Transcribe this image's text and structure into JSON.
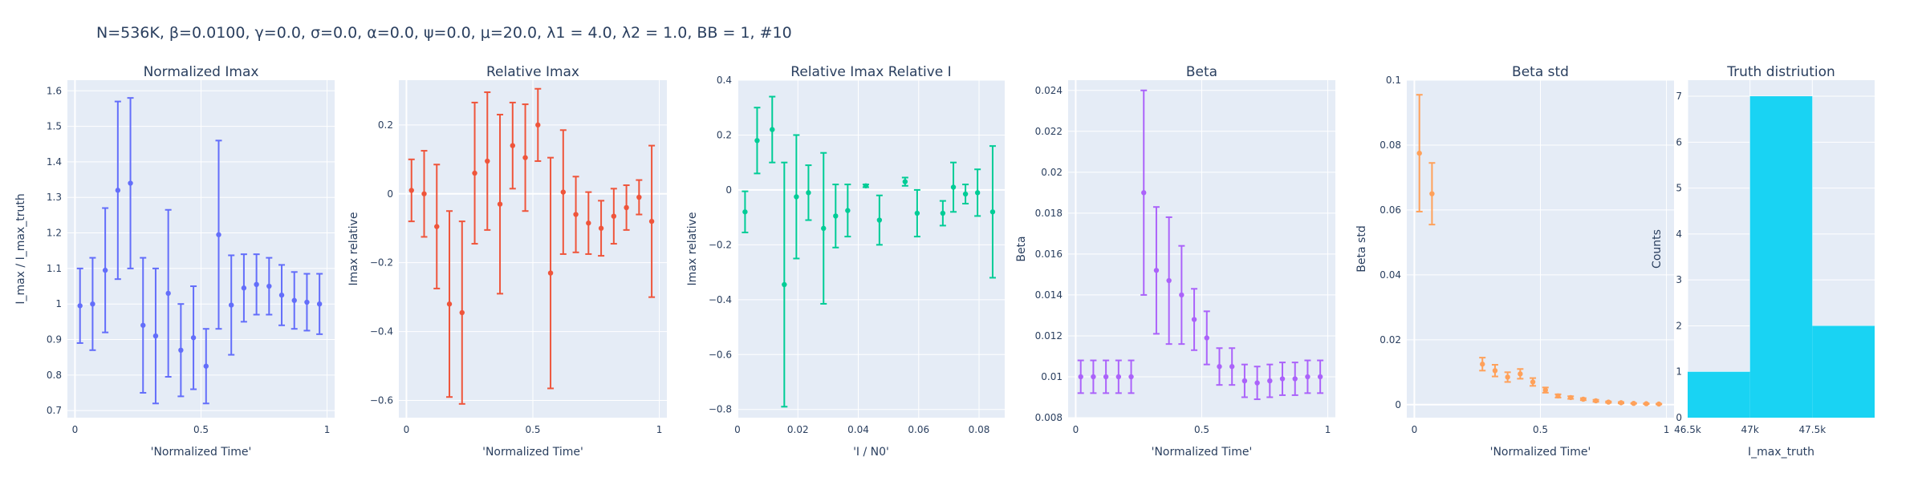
{
  "figure_title": "N=536K, β=0.0100, γ=0.0, σ=0.0,  α=0.0, ψ=0.0, μ=20.0, λ1 = 4.0, λ2 = 1.0, BB = 1, #10",
  "chart_data": [
    {
      "type": "scatter",
      "title": "Normalized Imax",
      "xlabel": "'Normalized Time'",
      "ylabel": "I_max / I_max_truth",
      "color": "#636efa",
      "xlim": [
        -0.03,
        1.03
      ],
      "ylim": [
        0.68,
        1.63
      ],
      "xticks": [
        0,
        0.5,
        1
      ],
      "xtick_labels": [
        "0",
        "0.5",
        "1"
      ],
      "yticks": [
        0.7,
        0.8,
        0.9,
        1,
        1.1,
        1.2,
        1.3,
        1.4,
        1.5,
        1.6
      ],
      "ytick_labels": [
        "0.7",
        "0.8",
        "0.9",
        "1",
        "1.1",
        "1.2",
        "1.3",
        "1.4",
        "1.5",
        "1.6"
      ],
      "x": [
        0.02,
        0.07,
        0.12,
        0.17,
        0.22,
        0.27,
        0.32,
        0.37,
        0.42,
        0.47,
        0.52,
        0.57,
        0.62,
        0.67,
        0.72,
        0.77,
        0.82,
        0.87,
        0.92,
        0.97
      ],
      "y": [
        0.995,
        1.0,
        1.095,
        1.32,
        1.34,
        0.94,
        0.91,
        1.03,
        0.87,
        0.905,
        0.825,
        1.195,
        0.997,
        1.045,
        1.055,
        1.05,
        1.025,
        1.01,
        1.005,
        1.0
      ],
      "err": [
        0.105,
        0.13,
        0.175,
        0.25,
        0.24,
        0.19,
        0.19,
        0.235,
        0.13,
        0.145,
        0.105,
        0.265,
        0.14,
        0.095,
        0.085,
        0.08,
        0.085,
        0.08,
        0.08,
        0.085
      ]
    },
    {
      "type": "scatter",
      "title": "Relative Imax",
      "xlabel": "'Normalized Time'",
      "ylabel": "Imax relative",
      "color": "#ef553b",
      "xlim": [
        -0.03,
        1.03
      ],
      "ylim": [
        -0.65,
        0.33
      ],
      "xticks": [
        0,
        0.5,
        1
      ],
      "xtick_labels": [
        "0",
        "0.5",
        "1"
      ],
      "yticks": [
        -0.6,
        -0.4,
        -0.2,
        0,
        0.2
      ],
      "ytick_labels": [
        "−0.6",
        "−0.4",
        "−0.2",
        "0",
        "0.2"
      ],
      "x": [
        0.02,
        0.07,
        0.12,
        0.17,
        0.22,
        0.27,
        0.32,
        0.37,
        0.42,
        0.47,
        0.52,
        0.57,
        0.62,
        0.67,
        0.72,
        0.77,
        0.82,
        0.87,
        0.92,
        0.97
      ],
      "y": [
        0.01,
        0.0,
        -0.095,
        -0.32,
        -0.345,
        0.06,
        0.095,
        -0.03,
        0.14,
        0.105,
        0.2,
        -0.23,
        0.005,
        -0.06,
        -0.085,
        -0.1,
        -0.065,
        -0.04,
        -0.01,
        -0.08
      ],
      "err": [
        0.09,
        0.125,
        0.18,
        0.27,
        0.265,
        0.205,
        0.2,
        0.26,
        0.125,
        0.155,
        0.105,
        0.335,
        0.18,
        0.11,
        0.09,
        0.08,
        0.08,
        0.065,
        0.05,
        0.22
      ]
    },
    {
      "type": "scatter",
      "title": "Relative Imax Relative I",
      "xlabel": "'I / N0'",
      "ylabel": "Imax relative",
      "color": "#00cc96",
      "xlim": [
        0.0,
        0.0885
      ],
      "ylim": [
        -0.83,
        0.4
      ],
      "xticks": [
        0,
        0.02,
        0.04,
        0.06,
        0.08
      ],
      "xtick_labels": [
        "0",
        "0.02",
        "0.04",
        "0.06",
        "0.08"
      ],
      "yticks": [
        -0.8,
        -0.6,
        -0.4,
        -0.2,
        0,
        0.2,
        0.4
      ],
      "ytick_labels": [
        "−0.8",
        "−0.6",
        "−0.4",
        "−0.2",
        "0",
        "0.2",
        "0.4"
      ],
      "x": [
        0.0025,
        0.0065,
        0.0115,
        0.0155,
        0.0195,
        0.0235,
        0.0285,
        0.0325,
        0.0365,
        0.0425,
        0.047,
        0.0555,
        0.0595,
        0.068,
        0.0715,
        0.0755,
        0.0795,
        0.0845
      ],
      "y": [
        -0.08,
        0.18,
        0.22,
        -0.345,
        -0.025,
        -0.01,
        -0.14,
        -0.095,
        -0.075,
        0.015,
        -0.11,
        0.03,
        -0.085,
        -0.085,
        0.01,
        -0.015,
        -0.01,
        -0.08
      ],
      "err": [
        0.075,
        0.12,
        0.12,
        0.445,
        0.225,
        0.1,
        0.275,
        0.115,
        0.095,
        0.005,
        0.09,
        0.015,
        0.085,
        0.045,
        0.09,
        0.035,
        0.085,
        0.24
      ]
    },
    {
      "type": "scatter",
      "title": "Beta",
      "xlabel": "'Normalized Time'",
      "ylabel": "Beta",
      "color": "#ab63fa",
      "xlim": [
        -0.03,
        1.03
      ],
      "ylim": [
        0.008,
        0.0245
      ],
      "xticks": [
        0,
        0.5,
        1
      ],
      "xtick_labels": [
        "0",
        "0.5",
        "1"
      ],
      "yticks": [
        0.008,
        0.01,
        0.012,
        0.014,
        0.016,
        0.018,
        0.02,
        0.022,
        0.024
      ],
      "ytick_labels": [
        "0.008",
        "0.01",
        "0.012",
        "0.014",
        "0.016",
        "0.018",
        "0.02",
        "0.022",
        "0.024"
      ],
      "x": [
        0.02,
        0.07,
        0.12,
        0.17,
        0.22,
        0.27,
        0.32,
        0.37,
        0.42,
        0.47,
        0.52,
        0.57,
        0.62,
        0.67,
        0.72,
        0.77,
        0.82,
        0.87,
        0.92,
        0.97
      ],
      "y": [
        0.01,
        0.01,
        0.01,
        0.01,
        0.01,
        0.019,
        0.0152,
        0.0147,
        0.014,
        0.0128,
        0.0119,
        0.0105,
        0.0105,
        0.0098,
        0.0097,
        0.0098,
        0.0099,
        0.0099,
        0.01,
        0.01
      ],
      "err": [
        0.0008,
        0.0008,
        0.0008,
        0.0008,
        0.0008,
        0.005,
        0.0031,
        0.0031,
        0.0024,
        0.0015,
        0.0013,
        0.0009,
        0.0009,
        0.0008,
        0.0008,
        0.0008,
        0.0008,
        0.0008,
        0.0008,
        0.0008
      ]
    },
    {
      "type": "scatter",
      "title": "Beta std",
      "xlabel": "'Normalized Time'",
      "ylabel": "Beta std",
      "color": "#ffa15a",
      "xlim": [
        -0.03,
        1.03
      ],
      "ylim": [
        -0.004,
        0.1
      ],
      "xticks": [
        0,
        0.5,
        1
      ],
      "xtick_labels": [
        "0",
        "0.5",
        "1"
      ],
      "yticks": [
        0,
        0.02,
        0.04,
        0.06,
        0.08,
        0.1
      ],
      "ytick_labels": [
        "0",
        "0.02",
        "0.04",
        "0.06",
        "0.08",
        "0.1"
      ],
      "x": [
        0.02,
        0.07,
        0.12,
        0.17,
        0.22,
        0.27,
        0.32,
        0.37,
        0.42,
        0.47,
        0.52,
        0.57,
        0.62,
        0.67,
        0.72,
        0.77,
        0.82,
        0.87,
        0.92,
        0.97
      ],
      "y": [
        0.0775,
        0.065,
        null,
        null,
        null,
        0.0125,
        0.0105,
        0.0085,
        0.0095,
        0.007,
        0.0045,
        0.0027,
        0.0022,
        0.0017,
        0.0012,
        0.0008,
        0.0006,
        0.0004,
        0.0003,
        0.0002
      ],
      "err": [
        0.018,
        0.0095,
        null,
        null,
        null,
        0.002,
        0.0018,
        0.0015,
        0.0015,
        0.0012,
        0.0008,
        0.0005,
        0.0004,
        0.0003,
        0.0003,
        0.0002,
        0.0002,
        0.0001,
        0.0001,
        0.0001
      ]
    },
    {
      "type": "bar",
      "title": "Truth distriution",
      "xlabel": "I_max_truth",
      "ylabel": "Counts",
      "color": "#19d3f3",
      "xlim": [
        46500,
        48000
      ],
      "ylim": [
        0,
        7.35
      ],
      "xticks": [
        46500,
        47000,
        47500
      ],
      "xtick_labels": [
        "46.5k",
        "47k",
        "47.5k"
      ],
      "yticks": [
        0,
        1,
        2,
        3,
        4,
        5,
        6,
        7
      ],
      "ytick_labels": [
        "0",
        "1",
        "2",
        "3",
        "4",
        "5",
        "6",
        "7"
      ],
      "bin_edges": [
        46500,
        47000,
        47500,
        48000
      ],
      "values": [
        1,
        7,
        2
      ]
    }
  ]
}
